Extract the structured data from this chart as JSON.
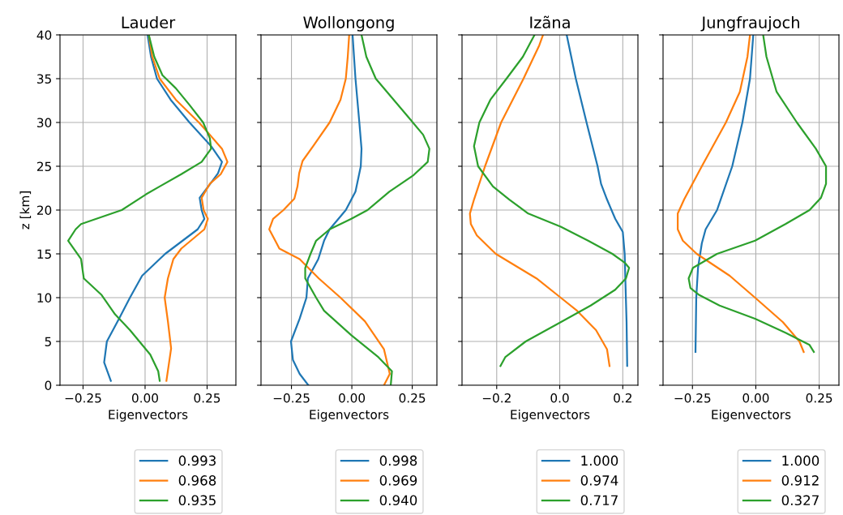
{
  "chart_data": [
    {
      "type": "line",
      "title": "Lauder",
      "xlabel": "Eigenvectors",
      "ylabel": "z [km]",
      "xlim": [
        -0.343,
        0.366
      ],
      "ylim": [
        0,
        40
      ],
      "xticks": [
        {
          "value": -0.25,
          "label": "−0.25"
        },
        {
          "value": 0,
          "label": "0.00"
        },
        {
          "value": 0.25,
          "label": "0.25"
        }
      ],
      "yticks": [
        0,
        5,
        10,
        15,
        20,
        25,
        30,
        35,
        40
      ],
      "grid": true,
      "legend": "bottom",
      "series": [
        {
          "name": "0.993",
          "color": "#1f77b4",
          "x": [
            -0.138,
            -0.165,
            -0.154,
            -0.105,
            -0.061,
            -0.012,
            0.081,
            0.212,
            0.239,
            0.228,
            0.22,
            0.255,
            0.294,
            0.31,
            0.266,
            0.179,
            0.103,
            0.048,
            0.024,
            0.01
          ],
          "values": [
            0.5,
            2.6,
            5,
            7.6,
            10,
            12.5,
            15,
            17.8,
            19,
            20,
            21.4,
            22.7,
            24.2,
            25.5,
            27.3,
            30,
            32.6,
            35,
            37.5,
            40
          ]
        },
        {
          "name": "0.968",
          "color": "#ff7f0e",
          "x": [
            0.086,
            0.105,
            0.092,
            0.079,
            0.092,
            0.114,
            0.146,
            0.239,
            0.253,
            0.236,
            0.228,
            0.261,
            0.305,
            0.332,
            0.31,
            0.261,
            0.217,
            0.124,
            0.059,
            0.029,
            0.015
          ],
          "values": [
            0.5,
            4.2,
            7.3,
            10,
            12.2,
            14.4,
            15.6,
            17.8,
            19,
            20,
            21.4,
            23,
            24.1,
            25.5,
            27,
            28.6,
            30,
            32.6,
            35,
            37.5,
            40
          ]
        },
        {
          "name": "0.935",
          "color": "#2ca02c",
          "x": [
            0.059,
            0.053,
            0.021,
            -0.061,
            -0.121,
            -0.175,
            -0.247,
            -0.258,
            -0.28,
            -0.31,
            -0.28,
            -0.258,
            -0.094,
            0.004,
            0.059,
            0.146,
            0.228,
            0.266,
            0.261,
            0.234,
            0.179,
            0.124,
            0.07,
            0.037,
            0.015
          ],
          "values": [
            0.5,
            1.6,
            3.5,
            6.3,
            8.1,
            10.3,
            12.2,
            14.4,
            15.3,
            16.5,
            17.8,
            18.4,
            20,
            21.8,
            22.7,
            24.1,
            25.5,
            27,
            28.2,
            30,
            32,
            33.9,
            35.4,
            37.5,
            40
          ]
        }
      ]
    },
    {
      "type": "line",
      "title": "Wollongong",
      "xlabel": "Eigenvectors",
      "xlim": [
        -0.376,
        0.352
      ],
      "ylim": [
        0,
        40
      ],
      "xticks": [
        {
          "value": -0.25,
          "label": "−0.25"
        },
        {
          "value": 0,
          "label": "0.00"
        },
        {
          "value": 0.25,
          "label": "0.25"
        }
      ],
      "yticks": [
        0,
        5,
        10,
        15,
        20,
        25,
        30,
        35,
        40
      ],
      "tick_labels": "x",
      "grid": true,
      "legend": "bottom",
      "series": [
        {
          "name": "0.998",
          "color": "#1f77b4",
          "x": [
            -0.18,
            -0.216,
            -0.244,
            -0.252,
            -0.216,
            -0.188,
            -0.182,
            -0.139,
            -0.115,
            -0.092,
            -0.025,
            0.015,
            0.037,
            0.04,
            0.031,
            0.015,
            0.003
          ],
          "values": [
            0,
            1.3,
            2.9,
            5,
            7.6,
            10,
            12.2,
            14.4,
            16.5,
            17.8,
            20,
            22.1,
            25,
            27,
            30,
            35,
            40
          ]
        },
        {
          "name": "0.969",
          "color": "#ff7f0e",
          "x": [
            0.133,
            0.157,
            0.133,
            0.054,
            -0.047,
            -0.137,
            -0.216,
            -0.3,
            -0.317,
            -0.342,
            -0.326,
            -0.283,
            -0.238,
            -0.225,
            -0.218,
            -0.204,
            -0.16,
            -0.092,
            -0.047,
            -0.025,
            -0.017,
            -0.011
          ],
          "values": [
            0,
            1.3,
            4.1,
            7.3,
            10,
            12.2,
            14.4,
            15.6,
            16.5,
            17.8,
            19,
            20,
            21.3,
            22.7,
            24.2,
            25.6,
            27.3,
            30,
            32.6,
            35,
            37.5,
            40
          ]
        },
        {
          "name": "0.940",
          "color": "#2ca02c",
          "x": [
            0.161,
            0.166,
            0.11,
            -0.002,
            -0.115,
            -0.148,
            -0.193,
            -0.193,
            -0.171,
            -0.148,
            -0.092,
            -0.002,
            0.065,
            0.155,
            0.256,
            0.314,
            0.321,
            0.295,
            0.222,
            0.099,
            0.06,
            0.04
          ],
          "values": [
            0,
            1.6,
            3.2,
            5.7,
            8.5,
            10,
            12.2,
            13.4,
            15,
            16.5,
            17.8,
            19,
            20,
            22.1,
            24,
            25.5,
            27,
            28.6,
            31,
            35,
            37.5,
            40
          ]
        }
      ]
    },
    {
      "type": "line",
      "title": "Izãna",
      "xlabel": "Eigenvectors",
      "xlim": [
        -0.31,
        0.248
      ],
      "ylim": [
        0,
        40
      ],
      "xticks": [
        {
          "value": -0.2,
          "label": "−0.2"
        },
        {
          "value": 0,
          "label": "0.0"
        },
        {
          "value": 0.2,
          "label": "0.2"
        }
      ],
      "yticks": [
        0,
        5,
        10,
        15,
        20,
        25,
        30,
        35,
        40
      ],
      "tick_labels": "x",
      "grid": true,
      "legend": "bottom",
      "series": [
        {
          "name": "1.000",
          "color": "#1f77b4",
          "x": [
            0.214,
            0.212,
            0.208,
            0.206,
            0.2,
            0.176,
            0.15,
            0.131,
            0.12,
            0.085,
            0.051,
            0.029,
            0.022
          ],
          "values": [
            2.2,
            7.2,
            12.2,
            15,
            17.5,
            19,
            21.2,
            23,
            25,
            30,
            35,
            38.8,
            40
          ]
        },
        {
          "name": "0.974",
          "color": "#ff7f0e",
          "x": [
            0.158,
            0.15,
            0.115,
            0.055,
            0.003,
            -0.074,
            -0.203,
            -0.263,
            -0.282,
            -0.285,
            -0.272,
            -0.237,
            -0.186,
            -0.115,
            -0.065,
            -0.053
          ],
          "values": [
            2.2,
            4.1,
            6.3,
            8.5,
            10,
            12.2,
            15,
            17.1,
            18.4,
            19.6,
            21.2,
            25,
            30,
            35,
            38.8,
            40
          ]
        },
        {
          "name": "0.717",
          "color": "#2ca02c",
          "x": [
            -0.188,
            -0.173,
            -0.108,
            0.003,
            0.098,
            0.176,
            0.21,
            0.22,
            0.206,
            0.167,
            0.09,
            0.003,
            -0.1,
            -0.16,
            -0.212,
            -0.259,
            -0.272,
            -0.255,
            -0.22,
            -0.169,
            -0.117,
            -0.08
          ],
          "values": [
            2.2,
            3.2,
            5,
            7.2,
            9.1,
            10.9,
            12.2,
            13.4,
            14,
            15,
            16.5,
            18.1,
            19.6,
            21.2,
            22.7,
            25,
            27.3,
            30,
            32.6,
            35,
            37.5,
            40
          ]
        }
      ]
    },
    {
      "type": "line",
      "title": "Jungfraujoch",
      "xlabel": "Eigenvectors",
      "xlim": [
        -0.366,
        0.328
      ],
      "ylim": [
        0,
        40
      ],
      "xticks": [
        {
          "value": -0.25,
          "label": "−0.25"
        },
        {
          "value": 0,
          "label": "0.00"
        },
        {
          "value": 0.25,
          "label": "0.25"
        }
      ],
      "yticks": [
        0,
        5,
        10,
        15,
        20,
        25,
        30,
        35,
        40
      ],
      "tick_labels": "x",
      "grid": true,
      "legend": "bottom",
      "series": [
        {
          "name": "1.000",
          "color": "#1f77b4",
          "x": [
            -0.238,
            -0.235,
            -0.228,
            -0.213,
            -0.198,
            -0.153,
            -0.093,
            -0.053,
            -0.023,
            -0.01
          ],
          "values": [
            3.8,
            10,
            13.4,
            16.2,
            17.8,
            20,
            25,
            30,
            35,
            40
          ]
        },
        {
          "name": "0.912",
          "color": "#ff7f0e",
          "x": [
            0.189,
            0.172,
            0.107,
            -0.003,
            -0.103,
            -0.233,
            -0.288,
            -0.308,
            -0.308,
            -0.283,
            -0.213,
            -0.118,
            -0.063,
            -0.033,
            -0.023
          ],
          "values": [
            3.8,
            5,
            7.2,
            10,
            12.5,
            15,
            16.5,
            17.8,
            19.6,
            21.2,
            25,
            30,
            33.5,
            37.5,
            40
          ]
        },
        {
          "name": "0.327",
          "color": "#2ca02c",
          "x": [
            0.229,
            0.212,
            0.117,
            -0.003,
            -0.143,
            -0.223,
            -0.258,
            -0.265,
            -0.248,
            -0.153,
            -0.003,
            0.117,
            0.212,
            0.257,
            0.277,
            0.277,
            0.237,
            0.162,
            0.082,
            0.042,
            0.029
          ],
          "values": [
            3.8,
            4.6,
            6,
            7.6,
            9.1,
            10.3,
            11.1,
            12.2,
            13.4,
            15,
            16.5,
            18.4,
            20,
            21.4,
            23,
            25,
            27,
            30,
            33.5,
            37.5,
            40
          ]
        }
      ]
    }
  ]
}
